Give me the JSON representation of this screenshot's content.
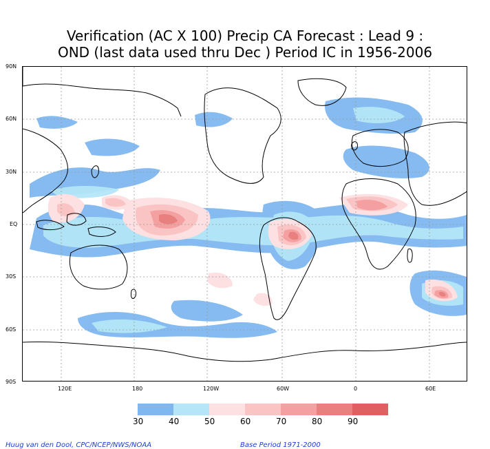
{
  "title": {
    "line1": "Verification (AC X 100) Precip CA Forecast : Lead 9 :",
    "line2": "OND (last data used thru Dec ) Period IC in 1956-2006"
  },
  "map": {
    "lat_labels": [
      "90N",
      "60N",
      "30N",
      "EQ",
      "30S",
      "60S",
      "90S"
    ],
    "lon_labels": [
      "120E",
      "180",
      "120W",
      "60W",
      "0",
      "60E"
    ]
  },
  "legend": {
    "labels": [
      "30",
      "40",
      "50",
      "60",
      "70",
      "80",
      "90"
    ],
    "colors": [
      "#7fb8f0",
      "#b4e6f8",
      "#fde0e2",
      "#fbc4c4",
      "#f4a0a0",
      "#e98080",
      "#de6060"
    ]
  },
  "credits": {
    "left": "Huug van den Dool, CPC/NCEP/NWS/NOAA",
    "right": "Base Period 1971-2000"
  }
}
